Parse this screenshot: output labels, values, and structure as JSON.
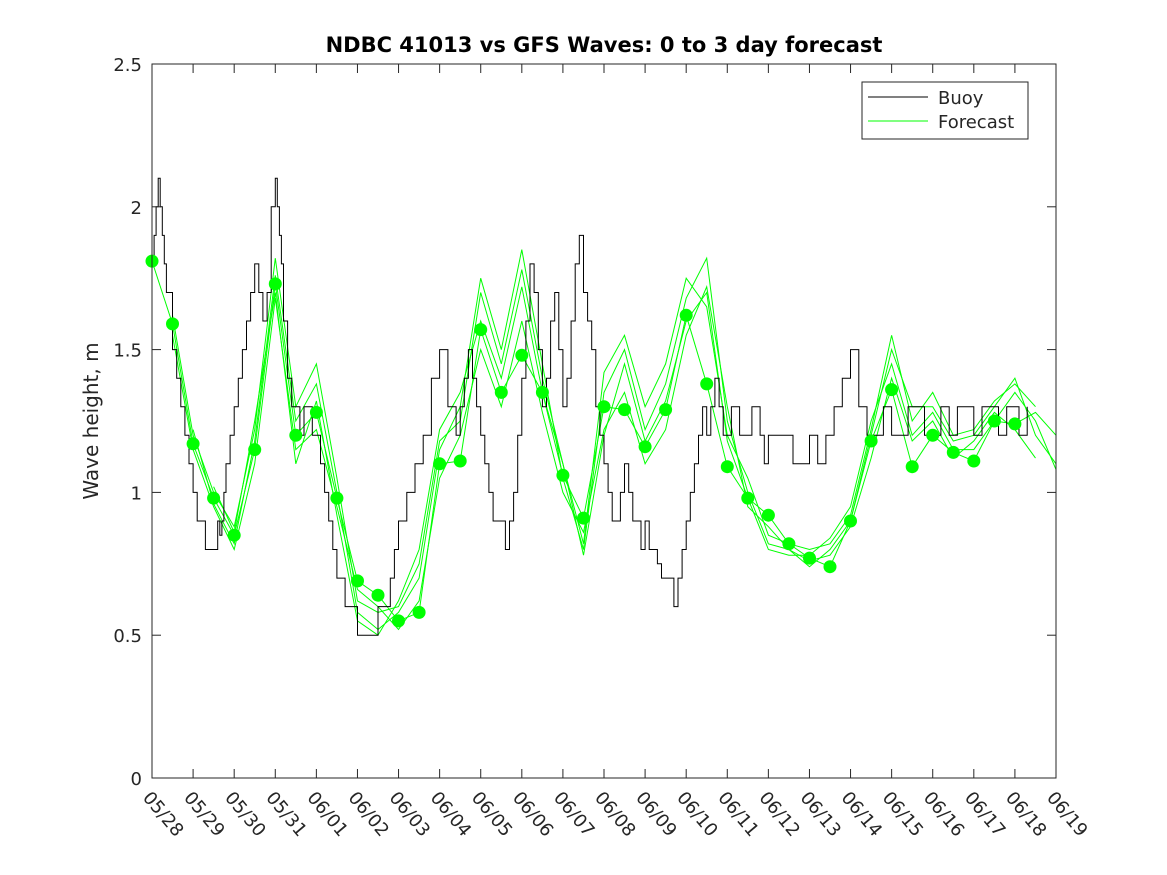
{
  "chart_data": {
    "type": "line",
    "title": "NDBC 41013 vs GFS Waves: 0 to 3 day forecast",
    "xlabel": "",
    "ylabel": "Wave height, m",
    "xlim": [
      0,
      22
    ],
    "ylim": [
      0,
      2.5
    ],
    "yticks": [
      0,
      0.5,
      1,
      1.5,
      2,
      2.5
    ],
    "ytick_labels": [
      "0",
      "0.5",
      "1",
      "1.5",
      "2",
      "2.5"
    ],
    "xtick_labels": [
      "05/28",
      "05/29",
      "05/30",
      "05/31",
      "06/01",
      "06/02",
      "06/03",
      "06/04",
      "06/05",
      "06/06",
      "06/07",
      "06/08",
      "06/09",
      "06/10",
      "06/11",
      "06/12",
      "06/13",
      "06/14",
      "06/15",
      "06/16",
      "06/17",
      "06/18",
      "06/19"
    ],
    "x_units": "days from 05/28",
    "grid": false,
    "legend": {
      "location": "top-right",
      "entries": [
        "Buoy",
        "Forecast"
      ]
    },
    "colors": {
      "buoy": "#000000",
      "forecast": "#00ff00"
    },
    "series": [
      {
        "name": "Buoy",
        "style": "step",
        "color": "#000000",
        "x": [
          0,
          0.05,
          0.1,
          0.15,
          0.2,
          0.25,
          0.3,
          0.35,
          0.5,
          0.6,
          0.7,
          0.8,
          0.9,
          1.0,
          1.05,
          1.1,
          1.2,
          1.3,
          1.5,
          1.6,
          1.65,
          1.7,
          1.75,
          1.8,
          1.9,
          2.0,
          2.1,
          2.2,
          2.3,
          2.4,
          2.5,
          2.6,
          2.7,
          2.8,
          2.9,
          3.0,
          3.05,
          3.1,
          3.15,
          3.2,
          3.3,
          3.4,
          3.5,
          3.6,
          3.7,
          3.8,
          3.9,
          4.0,
          4.1,
          4.2,
          4.3,
          4.4,
          4.5,
          4.6,
          4.7,
          4.8,
          4.9,
          5.0,
          5.1,
          5.2,
          5.3,
          5.5,
          5.7,
          5.8,
          5.9,
          6.0,
          6.2,
          6.4,
          6.6,
          6.8,
          7.0,
          7.2,
          7.4,
          7.5,
          7.6,
          7.7,
          7.8,
          7.9,
          8.0,
          8.1,
          8.2,
          8.3,
          8.5,
          8.6,
          8.7,
          8.8,
          8.9,
          9.0,
          9.1,
          9.2,
          9.3,
          9.4,
          9.5,
          9.6,
          9.7,
          9.8,
          9.9,
          10.0,
          10.1,
          10.2,
          10.3,
          10.4,
          10.5,
          10.6,
          10.7,
          10.8,
          10.9,
          11.0,
          11.1,
          11.2,
          11.3,
          11.4,
          11.5,
          11.6,
          11.7,
          11.8,
          11.9,
          12.0,
          12.1,
          12.2,
          12.3,
          12.4,
          12.5,
          12.6,
          12.7,
          12.8,
          12.9,
          13.0,
          13.1,
          13.2,
          13.3,
          13.4,
          13.5,
          13.6,
          13.7,
          13.8,
          13.9,
          14.0,
          14.1,
          14.2,
          14.3,
          14.4,
          14.5,
          14.6,
          14.7,
          14.8,
          14.9,
          15.0,
          15.2,
          15.4,
          15.6,
          15.8,
          16.0,
          16.2,
          16.4,
          16.6,
          16.8,
          17.0,
          17.2,
          17.4,
          17.6,
          17.8,
          18.0,
          18.2,
          18.4,
          18.6,
          18.8,
          19.0,
          19.2,
          19.4,
          19.6,
          19.8,
          20.0,
          20.2,
          20.4,
          20.6,
          20.8,
          21.0,
          21.1,
          21.2,
          21.3
        ],
        "y": [
          1.8,
          1.9,
          2.0,
          2.1,
          2.0,
          1.9,
          1.8,
          1.7,
          1.5,
          1.4,
          1.3,
          1.2,
          1.1,
          1.0,
          1.0,
          0.9,
          0.9,
          0.8,
          0.8,
          0.9,
          0.85,
          0.9,
          1.0,
          1.1,
          1.2,
          1.3,
          1.4,
          1.5,
          1.6,
          1.7,
          1.8,
          1.7,
          1.6,
          1.7,
          2.0,
          2.1,
          2.0,
          1.9,
          1.8,
          1.6,
          1.4,
          1.3,
          1.3,
          1.2,
          1.3,
          1.3,
          1.2,
          1.2,
          1.1,
          1.0,
          0.9,
          0.8,
          0.7,
          0.7,
          0.6,
          0.6,
          0.6,
          0.5,
          0.5,
          0.5,
          0.5,
          0.6,
          0.6,
          0.7,
          0.8,
          0.9,
          1.0,
          1.1,
          1.2,
          1.4,
          1.5,
          1.3,
          1.2,
          1.3,
          1.4,
          1.5,
          1.4,
          1.3,
          1.2,
          1.1,
          1.0,
          0.9,
          0.9,
          0.8,
          0.9,
          1.0,
          1.2,
          1.4,
          1.6,
          1.8,
          1.7,
          1.5,
          1.3,
          1.4,
          1.6,
          1.7,
          1.5,
          1.3,
          1.4,
          1.6,
          1.8,
          1.9,
          1.7,
          1.6,
          1.5,
          1.3,
          1.2,
          1.1,
          1.0,
          0.9,
          0.9,
          1.0,
          1.1,
          1.0,
          0.9,
          0.9,
          0.8,
          0.9,
          0.8,
          0.8,
          0.75,
          0.7,
          0.7,
          0.7,
          0.6,
          0.7,
          0.8,
          0.9,
          1.0,
          1.1,
          1.2,
          1.3,
          1.2,
          1.3,
          1.4,
          1.3,
          1.2,
          1.2,
          1.3,
          1.3,
          1.2,
          1.2,
          1.2,
          1.3,
          1.3,
          1.2,
          1.1,
          1.2,
          1.2,
          1.2,
          1.1,
          1.1,
          1.2,
          1.1,
          1.2,
          1.3,
          1.4,
          1.5,
          1.3,
          1.2,
          1.2,
          1.3,
          1.2,
          1.2,
          1.3,
          1.3,
          1.2,
          1.2,
          1.3,
          1.2,
          1.3,
          1.3,
          1.2,
          1.3,
          1.3,
          1.2,
          1.3,
          1.3,
          1.2,
          1.2,
          1.3
        ]
      },
      {
        "name": "Forecast",
        "style": "line",
        "color": "#00ff00",
        "x": [
          0,
          0.5,
          1,
          1.5,
          2,
          2.5,
          3,
          3.5,
          4,
          4.5,
          5,
          5.5,
          6,
          6.5,
          7,
          7.5,
          8,
          8.5,
          9,
          9.5,
          10,
          10.5,
          11,
          11.5,
          12,
          12.5,
          13,
          13.5,
          14,
          14.5,
          15,
          15.5,
          16,
          16.5,
          17,
          17.5,
          18,
          18.5,
          19,
          19.5,
          20,
          20.5,
          21,
          21.5,
          22
        ],
        "y": [
          1.81,
          1.59,
          1.17,
          0.98,
          0.85,
          1.15,
          1.73,
          1.2,
          1.28,
          0.98,
          0.69,
          0.64,
          0.55,
          0.58,
          1.1,
          1.11,
          1.57,
          1.35,
          1.48,
          1.35,
          1.06,
          0.91,
          1.3,
          1.29,
          1.16,
          1.29,
          1.62,
          1.38,
          1.09,
          0.98,
          0.92,
          0.82,
          0.77,
          0.74,
          0.9,
          1.18,
          1.36,
          1.09,
          1.2,
          1.14,
          1.11,
          1.25,
          1.24,
          1.28,
          1.2
        ]
      },
      {
        "name": "Forecast",
        "style": "line",
        "color": "#00ff00",
        "x": [
          0.5,
          1,
          1.5,
          2,
          2.5,
          3,
          3.5,
          4,
          4.5,
          5,
          5.5,
          6,
          6.5,
          7,
          7.5,
          8,
          8.5,
          9,
          9.5,
          10,
          10.5,
          11,
          11.5,
          12,
          12.5,
          13,
          13.5,
          14,
          14.5,
          15,
          15.5,
          16,
          16.5,
          17,
          17.5,
          18,
          18.5,
          19,
          19.5,
          20,
          20.5,
          21,
          21.5
        ],
        "y": [
          1.62,
          1.2,
          1.0,
          0.88,
          1.22,
          1.82,
          1.3,
          1.45,
          1.05,
          0.62,
          0.58,
          0.6,
          0.75,
          1.18,
          1.25,
          1.7,
          1.45,
          1.78,
          1.4,
          1.1,
          0.82,
          1.42,
          1.55,
          1.3,
          1.45,
          1.75,
          1.65,
          1.2,
          1.05,
          0.85,
          0.82,
          0.8,
          0.82,
          0.92,
          1.22,
          1.55,
          1.25,
          1.35,
          1.2,
          1.22,
          1.32,
          1.38,
          1.3
        ]
      },
      {
        "name": "Forecast",
        "style": "line",
        "color": "#00ff00",
        "x": [
          0.5,
          1,
          1.5,
          2,
          2.5,
          3,
          3.5,
          4,
          4.5,
          5,
          5.5,
          6,
          6.5,
          7,
          7.5,
          8,
          8.5,
          9,
          9.5,
          10,
          10.5,
          11,
          11.5,
          12,
          12.5,
          13,
          13.5,
          14,
          14.5,
          15,
          15.5,
          16,
          16.5,
          17,
          17.5,
          18,
          18.5,
          19,
          19.5,
          20,
          20.5,
          21,
          21.5
        ],
        "y": [
          1.55,
          1.15,
          0.95,
          0.8,
          1.1,
          1.68,
          1.15,
          1.22,
          0.95,
          0.66,
          0.6,
          0.52,
          0.62,
          1.05,
          1.2,
          1.5,
          1.3,
          1.6,
          1.28,
          1.0,
          0.86,
          1.22,
          1.35,
          1.1,
          1.22,
          1.55,
          1.72,
          1.3,
          0.95,
          0.88,
          0.8,
          0.76,
          0.78,
          0.88,
          1.12,
          1.4,
          1.18,
          1.25,
          1.12,
          1.18,
          1.28,
          1.22,
          1.12
        ]
      },
      {
        "name": "Forecast",
        "style": "line",
        "color": "#00ff00",
        "x": [
          1,
          1.5,
          2,
          2.5,
          3,
          3.5,
          4,
          4.5,
          5,
          5.5,
          6,
          6.5,
          7,
          7.5,
          8,
          8.5,
          9,
          9.5,
          10,
          10.5,
          11,
          11.5,
          12,
          12.5,
          13,
          13.5,
          14,
          14.5,
          15,
          15.5,
          16,
          16.5,
          17,
          17.5,
          18,
          18.5,
          19,
          19.5,
          20,
          20.5,
          21,
          21.5,
          22
        ],
        "y": [
          1.22,
          0.96,
          0.82,
          1.18,
          1.76,
          1.25,
          1.38,
          1.0,
          0.58,
          0.52,
          0.58,
          0.7,
          1.15,
          1.3,
          1.75,
          1.5,
          1.85,
          1.45,
          1.05,
          0.8,
          1.35,
          1.5,
          1.22,
          1.38,
          1.68,
          1.82,
          1.25,
          1.0,
          0.82,
          0.8,
          0.74,
          0.8,
          0.9,
          1.2,
          1.5,
          1.3,
          1.3,
          1.18,
          1.2,
          1.3,
          1.4,
          1.2,
          1.1
        ]
      },
      {
        "name": "Forecast",
        "style": "line",
        "color": "#00ff00",
        "x": [
          1.5,
          2,
          2.5,
          3,
          3.5,
          4,
          4.5,
          5,
          5.5,
          6,
          6.5,
          7,
          7.5,
          8,
          8.5,
          9,
          9.5,
          10,
          10.5,
          11,
          11.5,
          12,
          12.5,
          13,
          13.5,
          14,
          14.5,
          15,
          15.5,
          16,
          16.5,
          17,
          17.5,
          18,
          18.5,
          19,
          19.5,
          20,
          20.5,
          21,
          21.5,
          22
        ],
        "y": [
          1.02,
          0.86,
          1.25,
          1.7,
          1.1,
          1.32,
          0.92,
          0.55,
          0.5,
          0.62,
          0.8,
          1.22,
          1.35,
          1.6,
          1.4,
          1.72,
          1.35,
          1.1,
          0.78,
          1.2,
          1.45,
          1.18,
          1.32,
          1.6,
          1.7,
          1.18,
          0.98,
          0.8,
          0.78,
          0.78,
          0.84,
          0.95,
          1.25,
          1.45,
          1.2,
          1.28,
          1.15,
          1.15,
          1.25,
          1.35,
          1.25,
          1.08
        ]
      }
    ],
    "markers": {
      "series": "Forecast",
      "color": "#00ff00",
      "x": [
        0,
        0.5,
        1,
        1.5,
        2,
        2.5,
        3,
        3.5,
        4,
        4.5,
        5,
        5.5,
        6,
        6.5,
        7,
        7.5,
        8,
        8.5,
        9,
        9.5,
        10,
        10.5,
        11,
        11.5,
        12,
        12.5,
        13,
        13.5,
        14,
        14.5,
        15,
        15.5,
        16,
        16.5,
        17,
        17.5,
        18,
        18.5,
        19,
        19.5,
        20,
        20.5,
        21
      ],
      "y": [
        1.81,
        1.59,
        1.17,
        0.98,
        0.85,
        1.15,
        1.73,
        1.2,
        1.28,
        0.98,
        0.69,
        0.64,
        0.55,
        0.58,
        1.1,
        1.11,
        1.57,
        1.35,
        1.48,
        1.35,
        1.06,
        0.91,
        1.3,
        1.29,
        1.16,
        1.29,
        1.62,
        1.38,
        1.09,
        0.98,
        0.92,
        0.82,
        0.77,
        0.74,
        0.9,
        1.18,
        1.36,
        1.09,
        1.2,
        1.14,
        1.11,
        1.25,
        1.24
      ]
    }
  }
}
